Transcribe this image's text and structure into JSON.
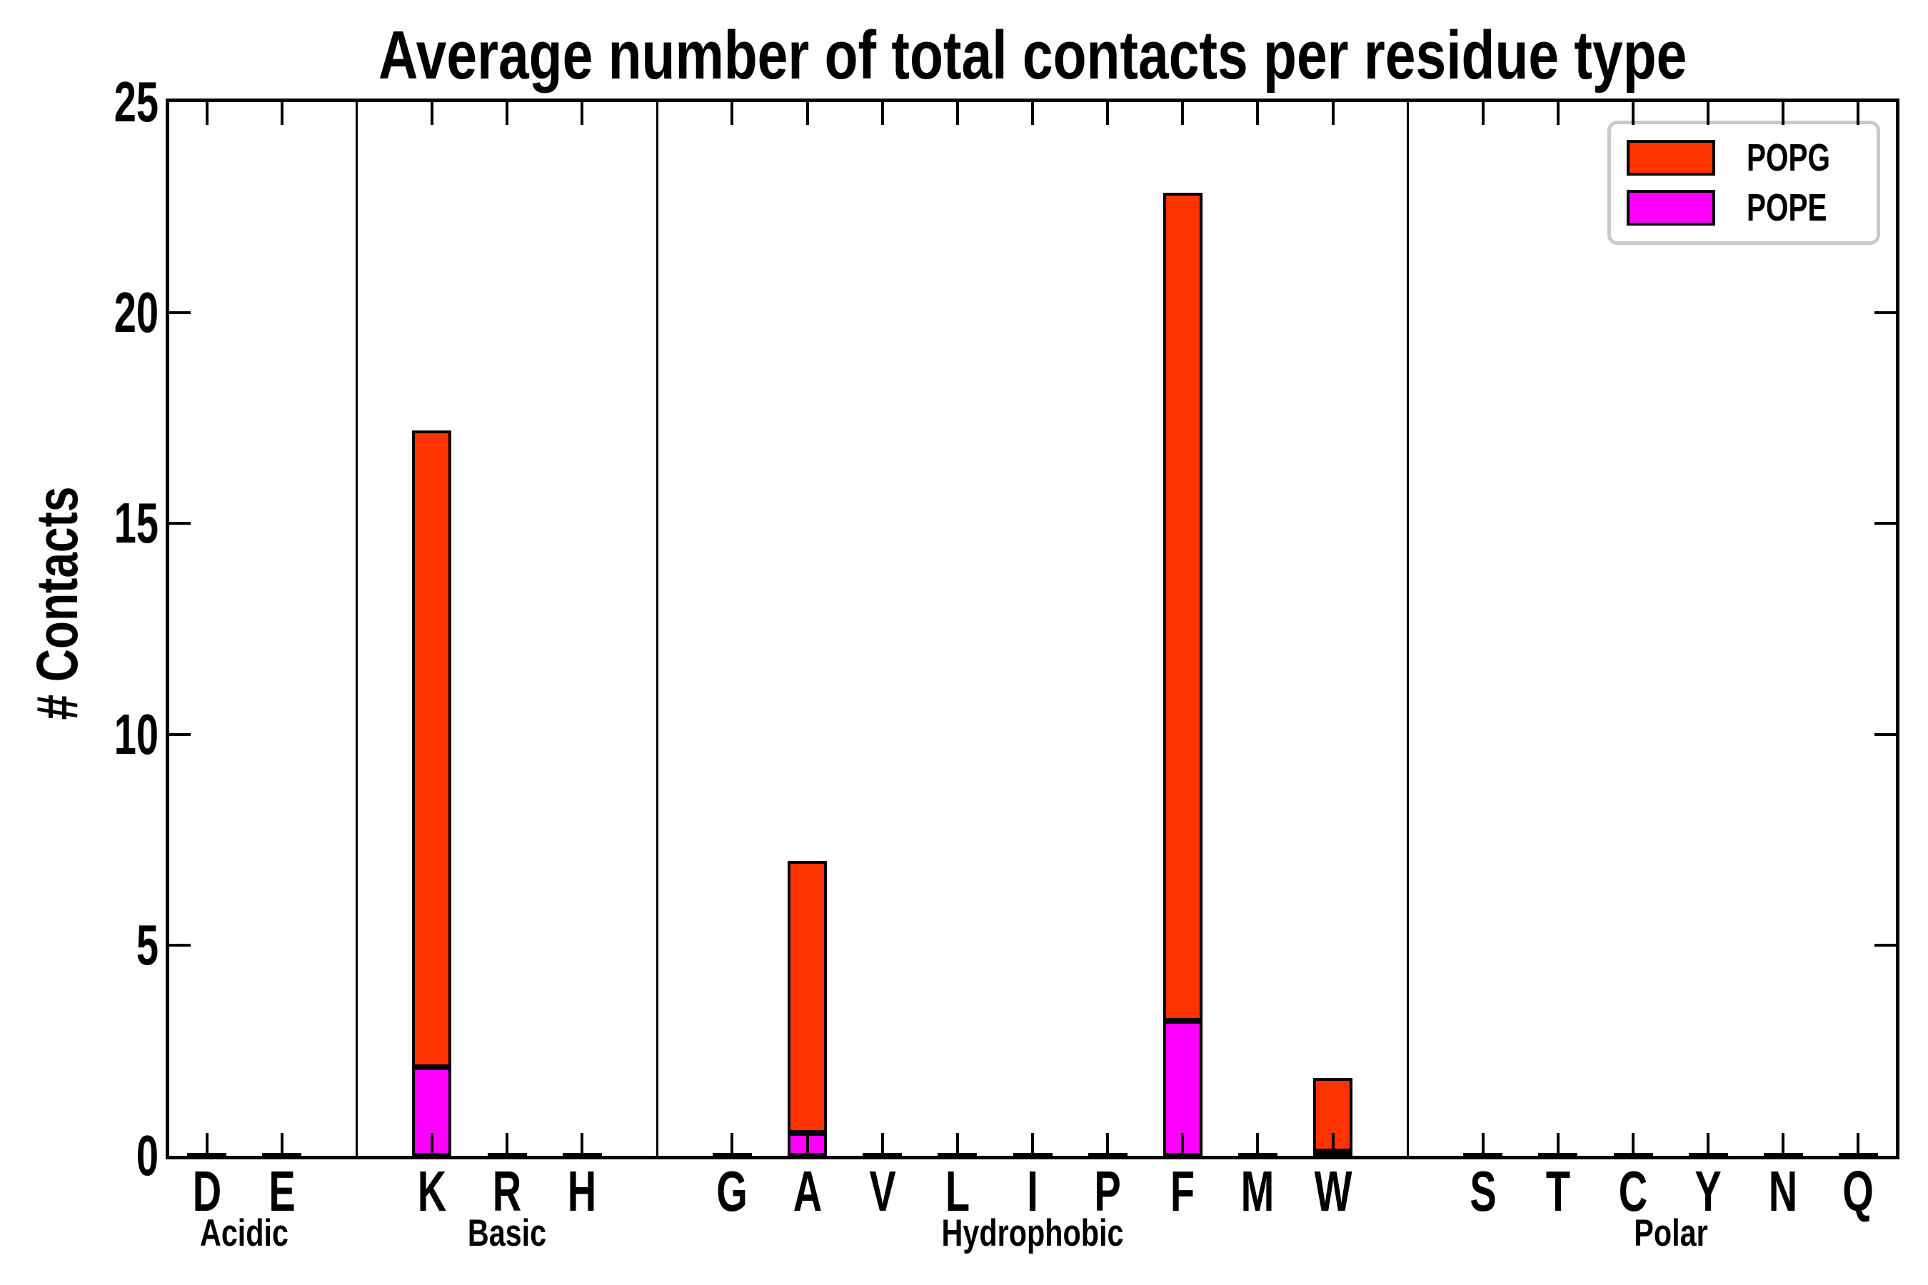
{
  "chart_data": {
    "type": "bar",
    "stacked": true,
    "title": "Average number of total contacts per residue type",
    "ylabel": "# Contacts",
    "ylim": [
      0,
      25
    ],
    "yticks": [
      0,
      5,
      10,
      15,
      20,
      25
    ],
    "grid": false,
    "legend_position": "upper-right",
    "categories": [
      "D",
      "E",
      "K",
      "R",
      "H",
      "G",
      "A",
      "V",
      "L",
      "I",
      "P",
      "F",
      "M",
      "W",
      "S",
      "T",
      "C",
      "Y",
      "N",
      "Q"
    ],
    "groups": [
      {
        "label": "Acidic",
        "residues": [
          "D",
          "E"
        ]
      },
      {
        "label": "Basic",
        "residues": [
          "K",
          "R",
          "H"
        ]
      },
      {
        "label": "Hydrophobic",
        "residues": [
          "G",
          "A",
          "V",
          "L",
          "I",
          "P",
          "F",
          "M",
          "W"
        ]
      },
      {
        "label": "Polar",
        "residues": [
          "S",
          "T",
          "C",
          "Y",
          "N",
          "Q"
        ]
      }
    ],
    "series": [
      {
        "name": "POPG",
        "color": "#ff3300",
        "values": [
          0.05,
          0.05,
          15.1,
          0.05,
          0.05,
          0.05,
          6.45,
          0.05,
          0.05,
          0.05,
          0.05,
          19.65,
          0.07,
          1.75,
          0.05,
          0.05,
          0.05,
          0.05,
          0.05,
          0.05
        ]
      },
      {
        "name": "POPE",
        "color": "#ff00ff",
        "values": [
          0,
          0,
          2.1,
          0,
          0,
          0,
          0.55,
          0,
          0,
          0,
          0,
          3.2,
          0,
          0.1,
          0,
          0,
          0,
          0,
          0,
          0
        ]
      }
    ],
    "stack_order_bottom_to_top": [
      "POPE",
      "POPG"
    ],
    "axis_color": "#000000",
    "background_color": "#ffffff"
  }
}
